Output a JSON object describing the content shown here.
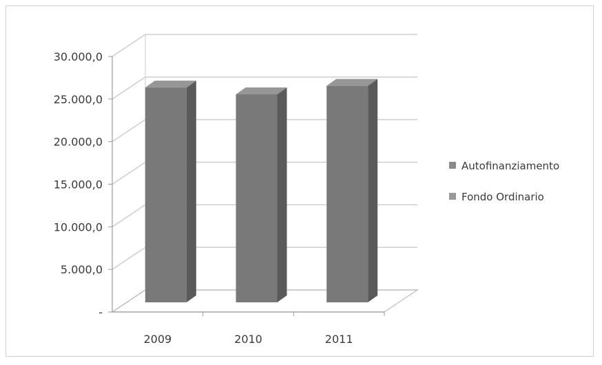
{
  "chart_data": {
    "type": "bar",
    "categories": [
      "2009",
      "2010",
      "2011"
    ],
    "series": [
      {
        "name": "Autofinanziamento",
        "values": [
          0,
          0,
          0
        ]
      },
      {
        "name": "Fondo Ordinario",
        "values": [
          27000,
          26200,
          27200
        ]
      }
    ],
    "y_ticks": [
      "-",
      "5.000,0",
      "10.000,0",
      "15.000,0",
      "20.000,0",
      "25.000,0",
      "30.000,0"
    ],
    "ylim": [
      0,
      30000
    ],
    "grid": true,
    "legend_position": "right",
    "bar_style": "3d",
    "colors": {
      "bar_front": "#797979",
      "bar_side": "#5a5a5a",
      "bar_top": "#969696",
      "legend_series_1": "#8a8a8a",
      "legend_series_2": "#9a9a9a",
      "grid": "#cdcdcd"
    }
  }
}
